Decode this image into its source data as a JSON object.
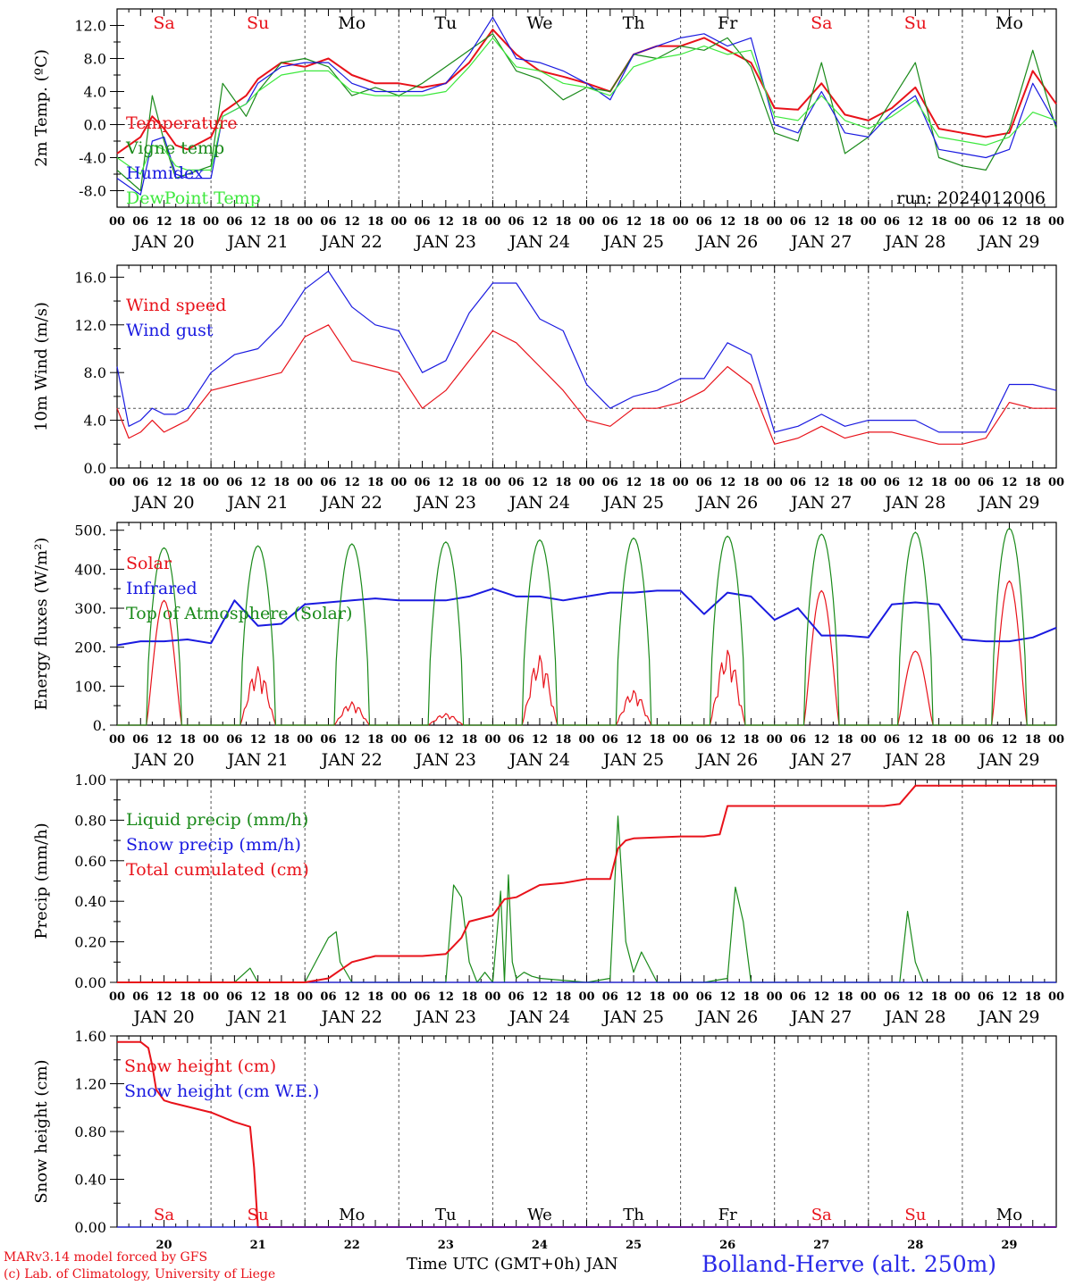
{
  "meta": {
    "run": "run: 2024012006",
    "credit_line1": "MARv3.14 model forced by GFS",
    "credit_line2": "(c) Lab. of Climatology, University of Liege",
    "location": "Bolland-Herve (alt. 250m)",
    "bottom_axis_label": "Time UTC (GMT+0h) JAN"
  },
  "days": [
    "Sa",
    "Su",
    "Mo",
    "Tu",
    "We",
    "Th",
    "Fr",
    "Sa",
    "Su",
    "Mo"
  ],
  "day_colors": [
    "#e8121a",
    "#e8121a",
    "#000000",
    "#000000",
    "#000000",
    "#000000",
    "#000000",
    "#e8121a",
    "#e8121a",
    "#000000"
  ],
  "dates": [
    "JAN 20",
    "JAN 21",
    "JAN 22",
    "JAN 23",
    "JAN 24",
    "JAN 25",
    "JAN 26",
    "JAN 27",
    "JAN 28",
    "JAN 29"
  ],
  "date_numbers": [
    "20",
    "21",
    "22",
    "23",
    "24",
    "25",
    "26",
    "27",
    "28",
    "29"
  ],
  "hour_ticks": [
    "00",
    "06",
    "12",
    "18"
  ],
  "colors": {
    "red": "#e8121a",
    "green": "#1a8a1a",
    "blue": "#1a1ae0",
    "lightgreen": "#3de83d"
  },
  "chart_data": [
    {
      "type": "line",
      "ylabel": "2m Temp. (ºC)",
      "ylim": [
        -10,
        14
      ],
      "yticks": [
        "-8.0",
        "-4.0",
        "0.0",
        "4.0",
        "8.0",
        "12.0"
      ],
      "ytick_values": [
        -8,
        -4,
        0,
        4,
        8,
        12
      ],
      "ref_line": 0,
      "x_unit": "hours since JAN 20 00 UTC",
      "series": [
        {
          "name": "Temperature",
          "color": "red",
          "x": [
            0,
            6,
            9,
            12,
            15,
            18,
            24,
            27,
            33,
            36,
            42,
            48,
            54,
            60,
            66,
            72,
            78,
            84,
            90,
            96,
            102,
            108,
            114,
            120,
            126,
            132,
            138,
            144,
            150,
            156,
            162,
            168,
            174,
            180,
            186,
            192,
            198,
            204,
            210,
            216,
            222,
            228,
            234,
            240
          ],
          "values": [
            -3.5,
            -1.5,
            1.0,
            -0.5,
            -2.5,
            -3.0,
            -1.5,
            1.5,
            3.5,
            5.5,
            7.5,
            7.0,
            8.0,
            6.0,
            5.0,
            5.0,
            4.5,
            5.0,
            7.5,
            11.5,
            8.5,
            6.5,
            5.8,
            5.0,
            4.0,
            8.5,
            9.5,
            9.5,
            10.5,
            9.0,
            7.5,
            2.0,
            1.8,
            5.0,
            1.2,
            0.5,
            2.0,
            4.5,
            -0.5,
            -1.0,
            -1.5,
            -1.0,
            6.5,
            2.5
          ]
        },
        {
          "name": "Vigne temp",
          "color": "green",
          "x": [
            0,
            6,
            9,
            12,
            15,
            18,
            24,
            27,
            33,
            36,
            42,
            48,
            54,
            60,
            66,
            72,
            78,
            84,
            90,
            96,
            102,
            108,
            114,
            120,
            126,
            132,
            138,
            144,
            150,
            156,
            162,
            168,
            174,
            180,
            186,
            192,
            198,
            204,
            210,
            216,
            222,
            228,
            234,
            240
          ],
          "values": [
            -5.5,
            -8.0,
            3.5,
            -2.0,
            -6.5,
            -6.0,
            -5.0,
            5.0,
            1.0,
            4.0,
            7.5,
            8.0,
            7.0,
            3.5,
            4.5,
            3.5,
            5.0,
            7.0,
            9.0,
            11.0,
            6.5,
            5.5,
            3.0,
            4.5,
            4.0,
            8.5,
            8.0,
            9.5,
            9.0,
            10.5,
            7.0,
            -1.0,
            -2.0,
            7.5,
            -3.5,
            -1.5,
            3.0,
            7.5,
            -4.0,
            -5.0,
            -5.5,
            -0.5,
            9.0,
            -0.5
          ]
        },
        {
          "name": "Humidex",
          "color": "blue",
          "x": [
            0,
            6,
            9,
            12,
            15,
            18,
            24,
            27,
            33,
            36,
            42,
            48,
            54,
            60,
            66,
            72,
            78,
            84,
            90,
            96,
            102,
            108,
            114,
            120,
            126,
            132,
            138,
            144,
            150,
            156,
            162,
            168,
            174,
            180,
            186,
            192,
            198,
            204,
            210,
            216,
            222,
            228,
            234,
            240
          ],
          "values": [
            -6.5,
            -8.5,
            -2.0,
            -1.5,
            -6.0,
            -6.5,
            -6.5,
            1.0,
            2.5,
            5.0,
            7.0,
            7.5,
            7.5,
            5.0,
            4.0,
            4.0,
            4.0,
            5.0,
            8.5,
            13.0,
            8.0,
            7.5,
            6.5,
            5.0,
            3.0,
            8.5,
            9.5,
            10.5,
            11.0,
            9.5,
            10.5,
            0.0,
            -1.0,
            4.0,
            -1.0,
            -1.5,
            1.5,
            3.5,
            -3.0,
            -3.5,
            -4.0,
            -3.0,
            5.0,
            0.0
          ]
        },
        {
          "name": "DewPoint Temp",
          "color": "lightgreen",
          "x": [
            0,
            6,
            9,
            12,
            15,
            18,
            24,
            27,
            33,
            36,
            42,
            48,
            54,
            60,
            66,
            72,
            78,
            84,
            90,
            96,
            102,
            108,
            114,
            120,
            126,
            132,
            138,
            144,
            150,
            156,
            162,
            168,
            174,
            180,
            186,
            192,
            198,
            204,
            210,
            216,
            222,
            228,
            234,
            240
          ],
          "values": [
            -4.0,
            -6.0,
            -2.5,
            -3.0,
            -5.0,
            -5.5,
            -5.5,
            1.0,
            2.5,
            4.0,
            6.0,
            6.5,
            6.5,
            4.0,
            3.5,
            3.5,
            3.5,
            4.0,
            7.0,
            10.5,
            7.0,
            6.5,
            5.0,
            4.5,
            3.5,
            7.0,
            8.0,
            8.5,
            9.5,
            8.5,
            9.0,
            1.0,
            0.5,
            3.5,
            0.5,
            -0.5,
            1.0,
            3.0,
            -1.5,
            -2.0,
            -2.5,
            -1.5,
            1.5,
            0.5
          ]
        }
      ]
    },
    {
      "type": "line",
      "ylabel": "10m Wind (m/s)",
      "ylim": [
        0,
        17
      ],
      "yticks": [
        "0.0",
        "4.0",
        "8.0",
        "12.0",
        "16.0"
      ],
      "ytick_values": [
        0,
        4,
        8,
        12,
        16
      ],
      "ref_line": 5,
      "x_unit": "hours since JAN 20 00 UTC",
      "series": [
        {
          "name": "Wind speed",
          "color": "red",
          "x": [
            0,
            3,
            6,
            9,
            12,
            15,
            18,
            24,
            30,
            36,
            42,
            48,
            54,
            60,
            66,
            72,
            78,
            84,
            90,
            96,
            102,
            108,
            114,
            120,
            126,
            132,
            138,
            144,
            150,
            156,
            162,
            168,
            174,
            180,
            186,
            192,
            198,
            204,
            210,
            216,
            222,
            228,
            234,
            240
          ],
          "values": [
            5.0,
            2.5,
            3.0,
            4.0,
            3.0,
            3.5,
            4.0,
            6.5,
            7.0,
            7.5,
            8.0,
            11.0,
            12.0,
            9.0,
            8.5,
            8.0,
            5.0,
            6.5,
            9.0,
            11.5,
            10.5,
            8.5,
            6.5,
            4.0,
            3.5,
            5.0,
            5.0,
            5.5,
            6.5,
            8.5,
            7.0,
            2.0,
            2.5,
            3.5,
            2.5,
            3.0,
            3.0,
            2.5,
            2.0,
            2.0,
            2.5,
            5.5,
            5.0,
            5.0
          ]
        },
        {
          "name": "Wind gust",
          "color": "blue",
          "x": [
            0,
            3,
            6,
            9,
            12,
            15,
            18,
            24,
            30,
            36,
            42,
            48,
            54,
            60,
            66,
            72,
            78,
            84,
            90,
            96,
            102,
            108,
            114,
            120,
            126,
            132,
            138,
            144,
            150,
            156,
            162,
            168,
            174,
            180,
            186,
            192,
            198,
            204,
            210,
            216,
            222,
            228,
            234,
            240
          ],
          "values": [
            8.5,
            3.5,
            4.0,
            5.0,
            4.5,
            4.5,
            5.0,
            8.0,
            9.5,
            10.0,
            12.0,
            15.0,
            16.5,
            13.5,
            12.0,
            11.5,
            8.0,
            9.0,
            13.0,
            15.5,
            15.5,
            12.5,
            11.5,
            7.0,
            5.0,
            6.0,
            6.5,
            7.5,
            7.5,
            10.5,
            9.5,
            3.0,
            3.5,
            4.5,
            3.5,
            4.0,
            4.0,
            4.0,
            3.0,
            3.0,
            3.0,
            7.0,
            7.0,
            6.5
          ]
        }
      ]
    },
    {
      "type": "line",
      "ylabel": "Energy fluxes (W/m²)",
      "ylim": [
        0,
        520
      ],
      "yticks": [
        "0.",
        "100.",
        "200.",
        "300.",
        "400.",
        "500."
      ],
      "ytick_values": [
        0,
        100,
        200,
        300,
        400,
        500
      ],
      "x_unit": "hours since JAN 20 00 UTC",
      "series": [
        {
          "name": "Solar",
          "color": "red",
          "daily_peaks": [
            320,
            150,
            60,
            30,
            180,
            90,
            195,
            345,
            190,
            370
          ]
        },
        {
          "name": "Infrared",
          "color": "blue",
          "x": [
            0,
            6,
            12,
            18,
            24,
            30,
            36,
            42,
            48,
            54,
            60,
            66,
            72,
            78,
            84,
            90,
            96,
            102,
            108,
            114,
            120,
            126,
            132,
            138,
            144,
            150,
            156,
            162,
            168,
            174,
            180,
            186,
            192,
            198,
            204,
            210,
            216,
            222,
            228,
            234,
            240
          ],
          "values": [
            205,
            215,
            215,
            220,
            210,
            320,
            255,
            260,
            310,
            315,
            320,
            325,
            320,
            320,
            320,
            330,
            350,
            330,
            330,
            320,
            330,
            340,
            340,
            345,
            345,
            285,
            340,
            330,
            270,
            300,
            230,
            230,
            225,
            310,
            315,
            310,
            220,
            215,
            215,
            225,
            250
          ]
        },
        {
          "name": "Top of Atmosphere (Solar)",
          "color": "green",
          "daily_peaks": [
            455,
            460,
            465,
            470,
            475,
            480,
            485,
            490,
            495,
            505
          ]
        }
      ]
    },
    {
      "type": "line",
      "ylabel": "Precip (mm/h)",
      "ylim": [
        0,
        1.0
      ],
      "yticks": [
        "0.00",
        "0.20",
        "0.40",
        "0.60",
        "0.80",
        "1.00"
      ],
      "ytick_values": [
        0,
        0.2,
        0.4,
        0.6,
        0.8,
        1.0
      ],
      "x_unit": "hours since JAN 20 00 UTC",
      "series": [
        {
          "name": "Liquid precip (mm/h)",
          "color": "green",
          "x": [
            0,
            30,
            34,
            36,
            48,
            54,
            56,
            57,
            60,
            66,
            84,
            86,
            88,
            90,
            92,
            94,
            96,
            98,
            99,
            100,
            101,
            102,
            104,
            106,
            108,
            120,
            126,
            128,
            130,
            132,
            134,
            138,
            150,
            156,
            158,
            160,
            162,
            168,
            200,
            202,
            204,
            206,
            240
          ],
          "values": [
            0,
            0,
            0.07,
            0,
            0,
            0.22,
            0.25,
            0.1,
            0,
            0,
            0,
            0.48,
            0.42,
            0.1,
            0,
            0.05,
            0,
            0.45,
            0,
            0.53,
            0.1,
            0.02,
            0.05,
            0.03,
            0.02,
            0,
            0.02,
            0.82,
            0.2,
            0.05,
            0.15,
            0,
            0,
            0.02,
            0.47,
            0.3,
            0,
            0,
            0,
            0.35,
            0.1,
            0,
            0
          ]
        },
        {
          "name": "Snow precip (mm/h)",
          "color": "blue",
          "x": [
            0,
            240
          ],
          "values": [
            0,
            0
          ]
        },
        {
          "name": "Total cumulated (cm)",
          "color": "red",
          "x": [
            0,
            30,
            48,
            54,
            60,
            66,
            78,
            84,
            88,
            90,
            96,
            99,
            102,
            108,
            114,
            120,
            126,
            128,
            130,
            132,
            144,
            150,
            154,
            156,
            168,
            196,
            200,
            204,
            240
          ],
          "values": [
            0,
            0,
            0,
            0.02,
            0.1,
            0.13,
            0.13,
            0.14,
            0.22,
            0.3,
            0.33,
            0.41,
            0.42,
            0.48,
            0.49,
            0.51,
            0.51,
            0.66,
            0.7,
            0.71,
            0.72,
            0.72,
            0.73,
            0.87,
            0.87,
            0.87,
            0.88,
            0.97,
            0.97
          ]
        }
      ]
    },
    {
      "type": "line",
      "ylabel": "Snow height (cm)",
      "ylim": [
        0,
        1.6
      ],
      "yticks": [
        "0.00",
        "0.40",
        "0.80",
        "1.20",
        "1.60"
      ],
      "ytick_values": [
        0,
        0.4,
        0.8,
        1.2,
        1.6
      ],
      "x_unit": "hours since JAN 20 00 UTC",
      "series": [
        {
          "name": "Snow height (cm)",
          "color": "red",
          "x": [
            0,
            6,
            8,
            9,
            10,
            12,
            14,
            24,
            30,
            34,
            35,
            36,
            40,
            240
          ],
          "values": [
            1.55,
            1.55,
            1.5,
            1.35,
            1.15,
            1.06,
            1.04,
            0.96,
            0.88,
            0.84,
            0.5,
            0,
            0,
            0
          ]
        },
        {
          "name": "Snow height (cm W.E.)",
          "color": "blue",
          "x": [
            0,
            240
          ],
          "values": [
            0,
            0
          ]
        }
      ]
    }
  ]
}
